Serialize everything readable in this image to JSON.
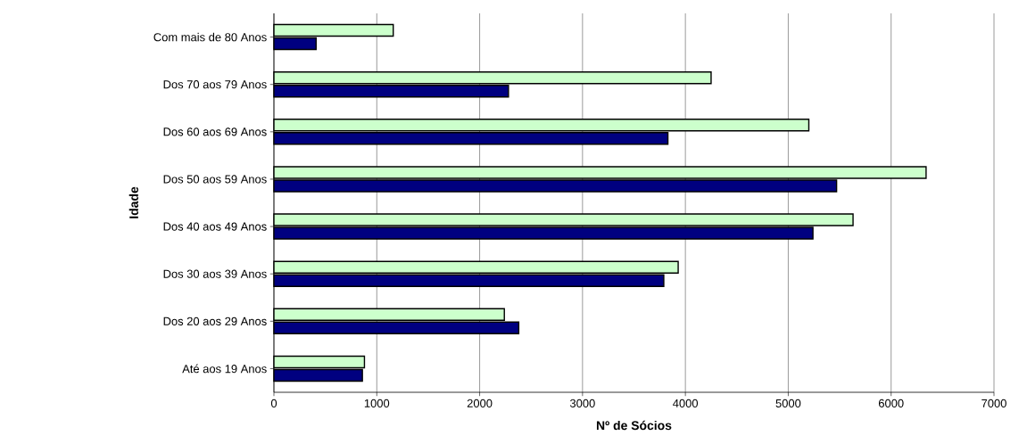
{
  "chart_data": {
    "type": "bar",
    "orientation": "horizontal",
    "xlabel": "Nº de Sócios",
    "ylabel": "Idade",
    "categories": [
      "Com mais de 80 Anos",
      "Dos 70 aos 79 Anos",
      "Dos 60 aos 69 Anos",
      "Dos 50 aos 59 Anos",
      "Dos 40 aos 49 Anos",
      "Dos 30 aos 39 Anos",
      "Dos 20 aos 29 Anos",
      "Até aos 19 Anos"
    ],
    "series": [
      {
        "color": "#ccffcc",
        "values": [
          1160,
          4250,
          5200,
          6340,
          5630,
          3930,
          2240,
          880
        ]
      },
      {
        "color": "#000080",
        "values": [
          410,
          2280,
          3830,
          5470,
          5240,
          3790,
          2380,
          860
        ]
      }
    ],
    "xlim": [
      0,
      7000
    ],
    "xticks": [
      0,
      1000,
      2000,
      3000,
      4000,
      5000,
      6000,
      7000
    ],
    "grid": "x"
  }
}
